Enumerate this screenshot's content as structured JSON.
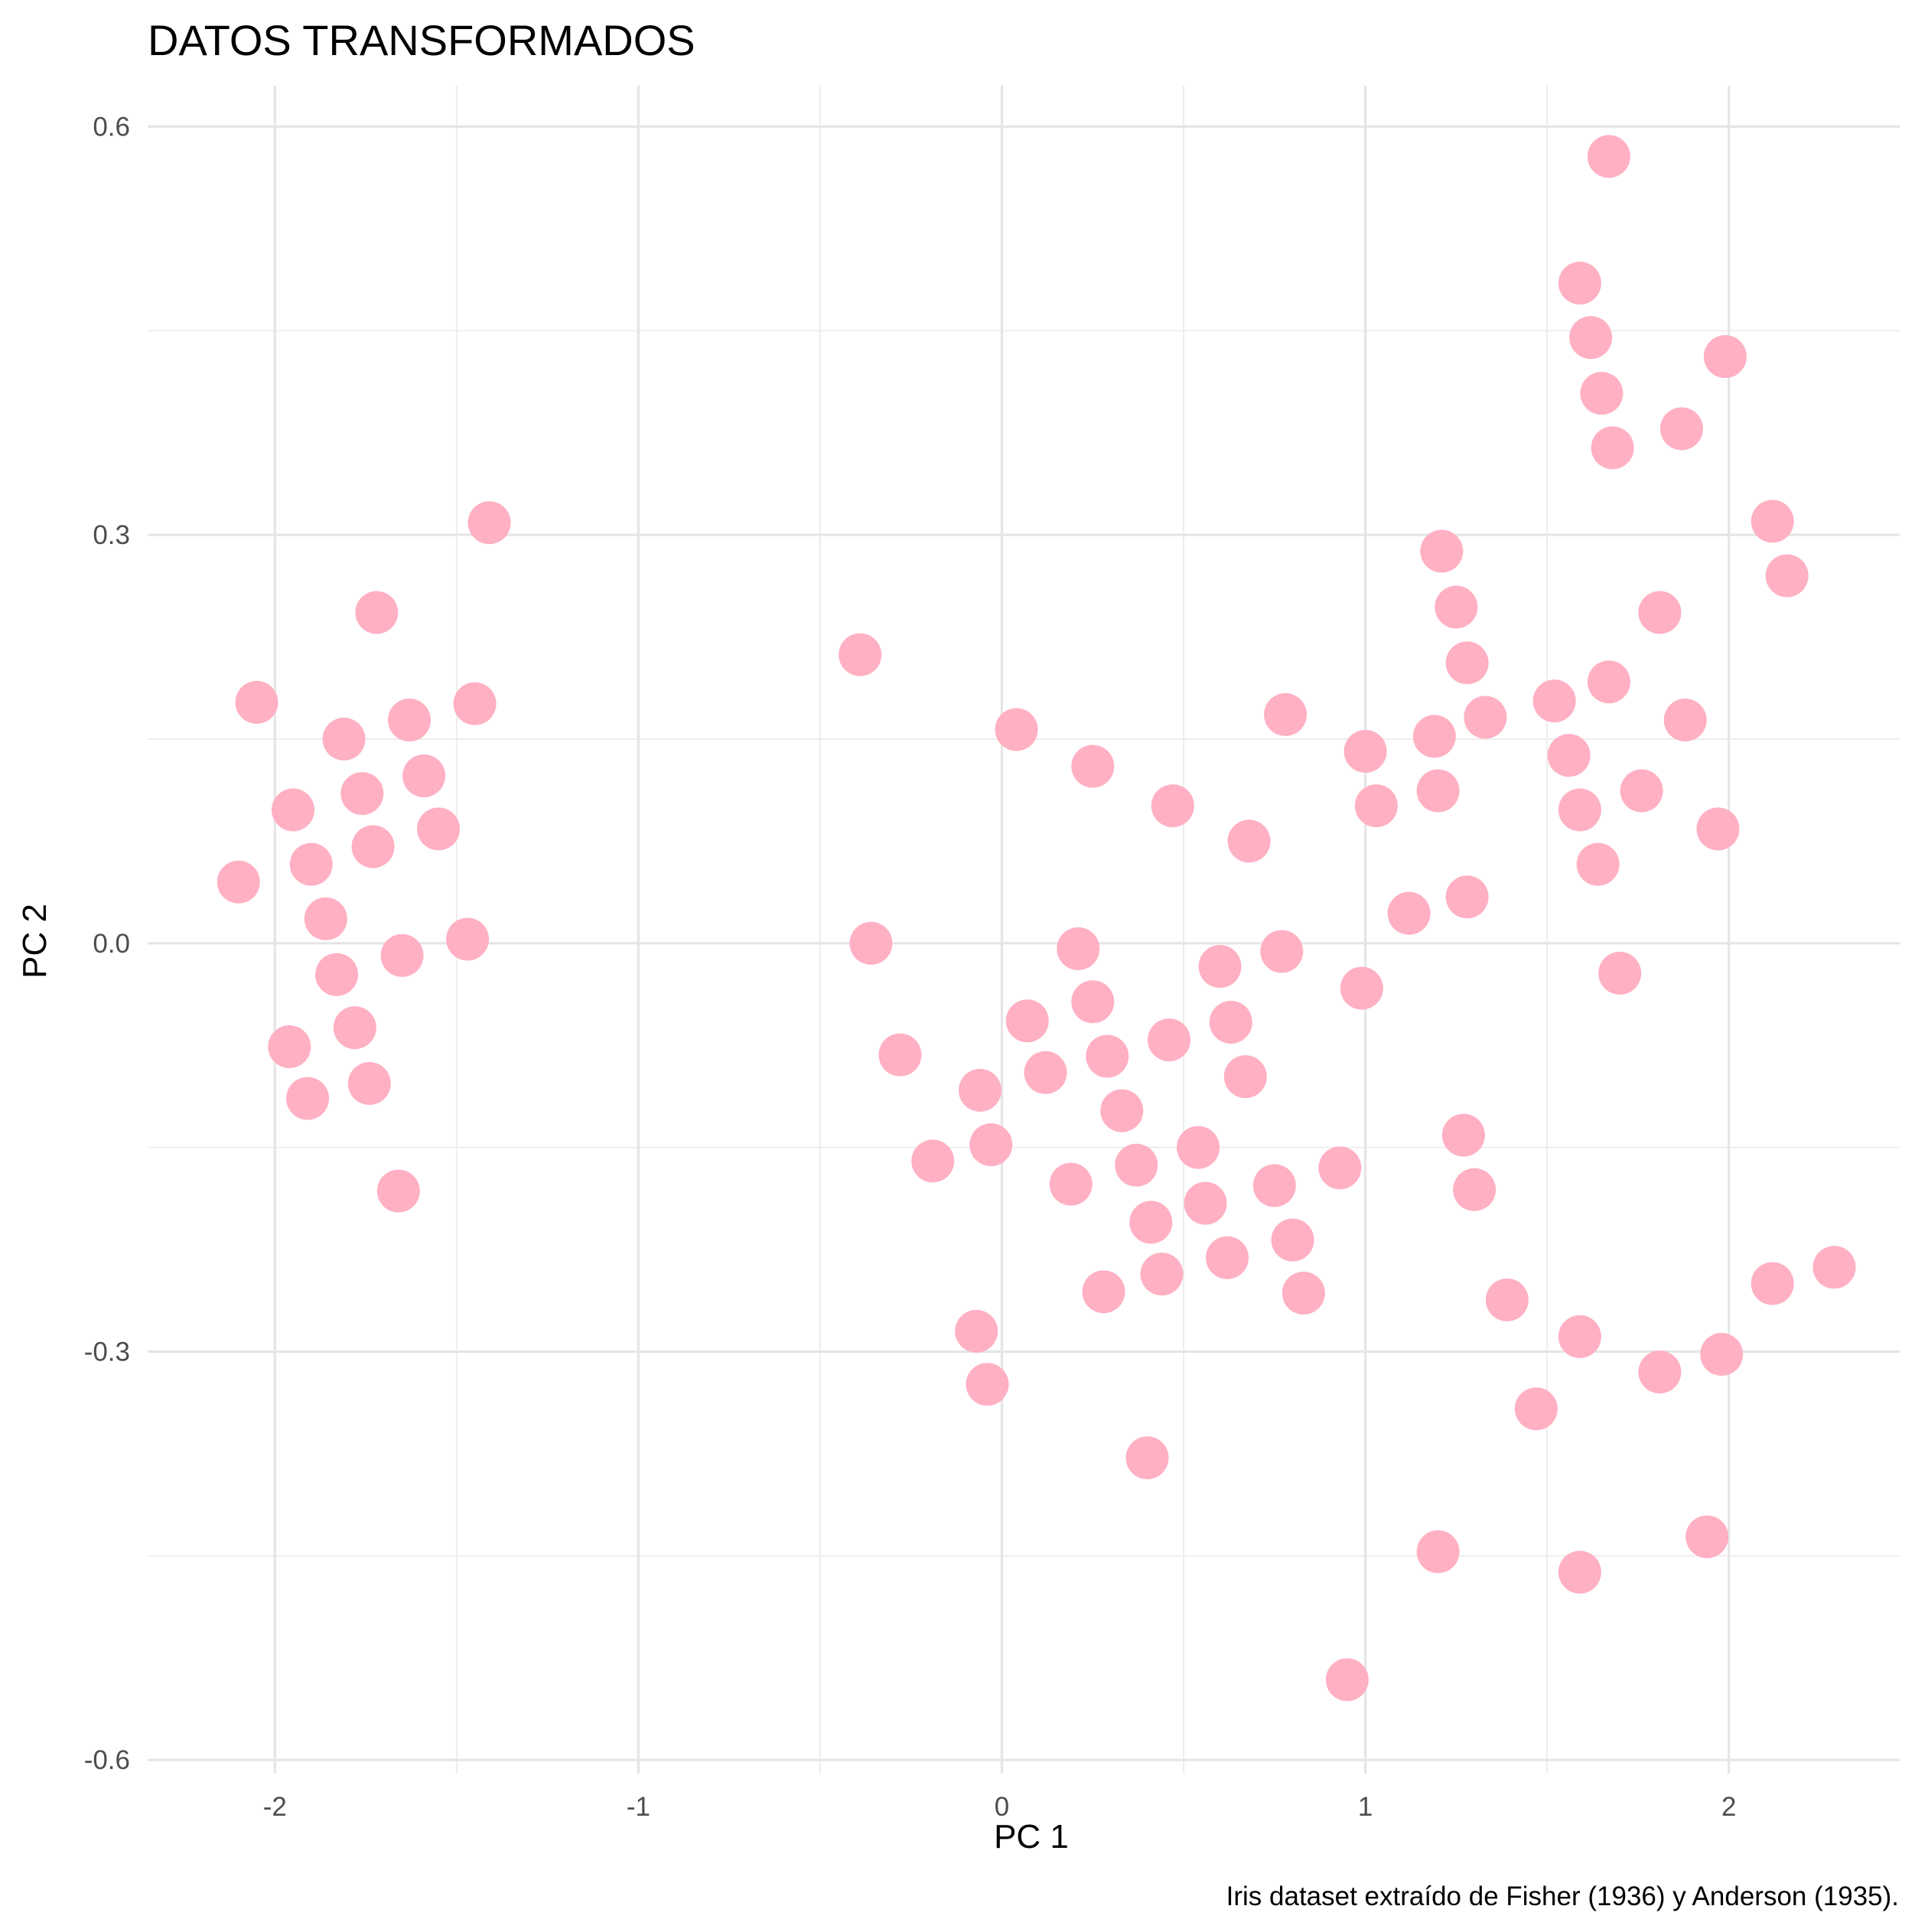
{
  "chart_data": {
    "type": "scatter",
    "title": "DATOS TRANSFORMADOS",
    "xlabel": "PC 1",
    "ylabel": "PC 2",
    "caption": "Iris dataset extraído de Fisher (1936) y Anderson (1935).",
    "xlim": [
      -2.35,
      2.47
    ],
    "ylim": [
      -0.61,
      0.63
    ],
    "x_ticks": [
      -2,
      -1,
      0,
      1,
      2
    ],
    "x_tick_labels": [
      "-2",
      "-1",
      "0",
      "1",
      "2"
    ],
    "y_ticks": [
      -0.6,
      -0.3,
      0.0,
      0.3,
      0.6
    ],
    "y_tick_labels": [
      "-0.6",
      "-0.3",
      "0.0",
      "0.3",
      "0.6"
    ],
    "grid": true,
    "legend": "none",
    "point_color": "#ffb0c3",
    "points": [
      [
        -2.05,
        0.177
      ],
      [
        -1.72,
        0.243
      ],
      [
        -1.81,
        0.15
      ],
      [
        -1.63,
        0.164
      ],
      [
        -1.45,
        0.176
      ],
      [
        -1.41,
        0.309
      ],
      [
        -1.95,
        0.098
      ],
      [
        -1.76,
        0.11
      ],
      [
        -1.59,
        0.123
      ],
      [
        -1.55,
        0.084
      ],
      [
        -2.1,
        0.045
      ],
      [
        -1.9,
        0.058
      ],
      [
        -1.73,
        0.071
      ],
      [
        -1.86,
        0.018
      ],
      [
        -1.47,
        0.003
      ],
      [
        -1.83,
        -0.023
      ],
      [
        -1.65,
        -0.009
      ],
      [
        -1.96,
        -0.076
      ],
      [
        -1.78,
        -0.062
      ],
      [
        -1.91,
        -0.114
      ],
      [
        -1.74,
        -0.103
      ],
      [
        -1.66,
        -0.182
      ],
      [
        -0.39,
        0.212
      ],
      [
        0.04,
        0.157
      ],
      [
        0.25,
        0.13
      ],
      [
        0.47,
        0.101
      ],
      [
        0.68,
        0.075
      ],
      [
        0.78,
        0.168
      ],
      [
        -0.36,
        0.0
      ],
      [
        0.21,
        -0.004
      ],
      [
        0.6,
        -0.017
      ],
      [
        0.77,
        -0.006
      ],
      [
        0.07,
        -0.057
      ],
      [
        0.25,
        -0.043
      ],
      [
        0.46,
        -0.071
      ],
      [
        0.63,
        -0.058
      ],
      [
        -0.28,
        -0.082
      ],
      [
        0.12,
        -0.095
      ],
      [
        0.29,
        -0.083
      ],
      [
        0.67,
        -0.098
      ],
      [
        -0.06,
        -0.108
      ],
      [
        0.33,
        -0.123
      ],
      [
        -0.03,
        -0.148
      ],
      [
        -0.19,
        -0.16
      ],
      [
        0.19,
        -0.177
      ],
      [
        0.37,
        -0.163
      ],
      [
        0.54,
        -0.15
      ],
      [
        0.56,
        -0.191
      ],
      [
        0.75,
        -0.178
      ],
      [
        0.41,
        -0.205
      ],
      [
        0.62,
        -0.231
      ],
      [
        0.8,
        -0.218
      ],
      [
        0.28,
        -0.256
      ],
      [
        0.44,
        -0.243
      ],
      [
        0.83,
        -0.257
      ],
      [
        0.93,
        -0.165
      ],
      [
        -0.07,
        -0.285
      ],
      [
        -0.04,
        -0.324
      ],
      [
        0.4,
        -0.378
      ],
      [
        0.95,
        -0.541
      ],
      [
        1.0,
        0.141
      ],
      [
        1.03,
        0.101
      ],
      [
        1.19,
        0.152
      ],
      [
        1.2,
        0.112
      ],
      [
        1.21,
        0.288
      ],
      [
        1.25,
        0.247
      ],
      [
        1.28,
        0.206
      ],
      [
        1.33,
        0.166
      ],
      [
        1.12,
        0.022
      ],
      [
        1.28,
        0.034
      ],
      [
        0.99,
        -0.033
      ],
      [
        1.27,
        -0.141
      ],
      [
        1.3,
        -0.181
      ],
      [
        1.39,
        -0.262
      ],
      [
        1.47,
        -0.342
      ],
      [
        1.2,
        -0.447
      ],
      [
        1.52,
        0.178
      ],
      [
        1.56,
        0.138
      ],
      [
        1.59,
        0.098
      ],
      [
        1.64,
        0.058
      ],
      [
        1.7,
        -0.022
      ],
      [
        1.76,
        0.112
      ],
      [
        1.67,
        0.192
      ],
      [
        1.81,
        0.243
      ],
      [
        1.88,
        0.164
      ],
      [
        1.97,
        0.084
      ],
      [
        1.59,
        0.485
      ],
      [
        1.62,
        0.445
      ],
      [
        1.65,
        0.404
      ],
      [
        1.68,
        0.364
      ],
      [
        1.67,
        0.578
      ],
      [
        1.87,
        0.378
      ],
      [
        1.99,
        0.431
      ],
      [
        2.12,
        0.31
      ],
      [
        2.16,
        0.27
      ],
      [
        1.59,
        -0.289
      ],
      [
        1.81,
        -0.315
      ],
      [
        1.98,
        -0.302
      ],
      [
        2.12,
        -0.25
      ],
      [
        2.29,
        -0.238
      ],
      [
        1.59,
        -0.462
      ],
      [
        1.94,
        -0.436
      ]
    ]
  }
}
